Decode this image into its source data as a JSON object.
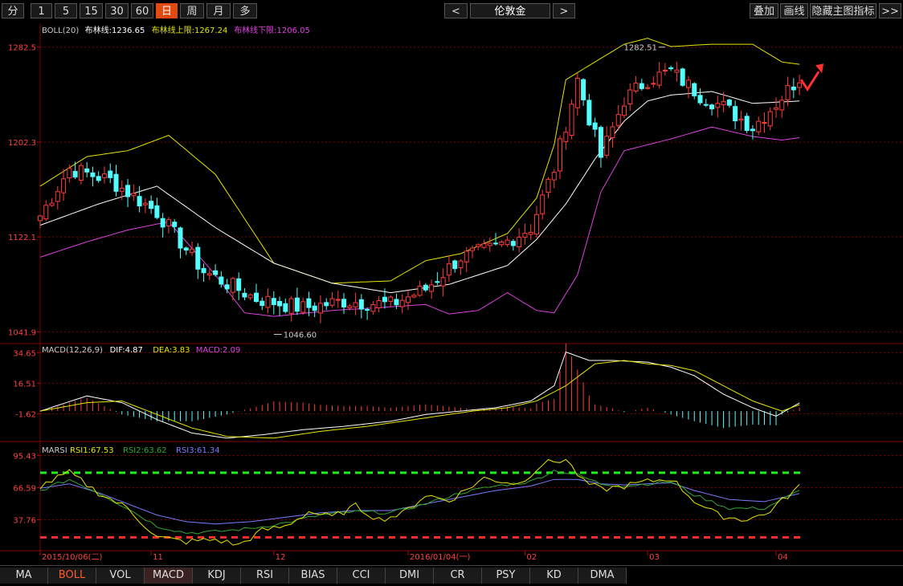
{
  "toolbar": {
    "periods": [
      "分",
      "1",
      "5",
      "15",
      "30",
      "60",
      "日",
      "周",
      "月",
      "多"
    ],
    "active_period": "日",
    "prev": "<",
    "next": ">",
    "symbol": "伦敦金",
    "actions": [
      "叠加",
      "画线",
      "隐藏主图指标",
      ">>"
    ]
  },
  "indicator_tabs": [
    "MA",
    "BOLL",
    "VOL",
    "MACD",
    "KDJ",
    "RSI",
    "BIAS",
    "CCI",
    "DMI",
    "CR",
    "PSY",
    "KD",
    "DMA"
  ],
  "active_main_tab": "BOLL",
  "active_sub_tab": "MACD",
  "colors": {
    "up": "#ff3b3b",
    "down": "#52ffff",
    "mid": "#ffffff",
    "upper": "#e6e600",
    "lower": "#e040e0",
    "grid": "#800000"
  },
  "chart_data": [
    {
      "type": "candlestick",
      "name": "BOLL",
      "legend": [
        {
          "label": "BOLL(20)",
          "color": "#cccccc"
        },
        {
          "label": "布林线:1236.65",
          "color": "#ffffff"
        },
        {
          "label": "布林线上限:1267.24",
          "color": "#e6e600"
        },
        {
          "label": "布林线下限:1206.05",
          "color": "#e040e0"
        }
      ],
      "y_ticks": [
        "1282.5",
        "1202.3",
        "1122.1",
        "1041.9"
      ],
      "y_tick_values": [
        1282.5,
        1202.3,
        1122.1,
        1041.9
      ],
      "ylim": [
        1032,
        1302
      ],
      "annotations": [
        {
          "text": "1282.51"
        },
        {
          "text": "1046.60"
        }
      ],
      "x_ticks": [
        "2015/10/06(二)",
        "11",
        "12",
        "2016/01/04(一)",
        "02",
        "03",
        "04"
      ],
      "x_tick_index": [
        0,
        19,
        40,
        63,
        83,
        104,
        126
      ],
      "n_bars": 131,
      "anchor_days": [
        0,
        5,
        12,
        20,
        28,
        37,
        45,
        52,
        60,
        66,
        72,
        78,
        84,
        88,
        92,
        96,
        100,
        104,
        108,
        113,
        117,
        122,
        126,
        130
      ],
      "anchor_close": [
        1140,
        1180,
        1170,
        1143,
        1093,
        1070,
        1062,
        1068,
        1065,
        1078,
        1105,
        1113,
        1130,
        1180,
        1255,
        1190,
        1238,
        1255,
        1262,
        1242,
        1232,
        1215,
        1235,
        1257
      ],
      "mid_days": [
        0,
        10,
        20,
        30,
        40,
        50,
        60,
        70,
        80,
        85,
        90,
        95,
        100,
        104,
        108,
        115,
        122,
        130
      ],
      "mid_vals": [
        1132,
        1150,
        1165,
        1130,
        1100,
        1083,
        1075,
        1082,
        1098,
        1120,
        1150,
        1188,
        1220,
        1237,
        1242,
        1245,
        1235,
        1237
      ],
      "upper_days": [
        0,
        8,
        15,
        22,
        30,
        40,
        50,
        60,
        66,
        72,
        80,
        85,
        88,
        90,
        95,
        100,
        104,
        108,
        115,
        122,
        127,
        130
      ],
      "upper_vals": [
        1165,
        1190,
        1195,
        1208,
        1175,
        1100,
        1083,
        1085,
        1102,
        1108,
        1125,
        1155,
        1200,
        1255,
        1270,
        1285,
        1290,
        1283,
        1285,
        1285,
        1270,
        1268
      ],
      "lower_days": [
        0,
        8,
        15,
        22,
        30,
        35,
        40,
        50,
        60,
        66,
        70,
        75,
        80,
        85,
        88,
        92,
        96,
        100,
        104,
        108,
        115,
        122,
        127,
        130
      ],
      "lower_vals": [
        1105,
        1118,
        1128,
        1135,
        1090,
        1058,
        1055,
        1060,
        1063,
        1065,
        1057,
        1060,
        1075,
        1060,
        1058,
        1090,
        1160,
        1195,
        1200,
        1205,
        1215,
        1207,
        1204,
        1206
      ],
      "arrow": "red-up-arrow"
    },
    {
      "type": "macd",
      "name": "MACD",
      "legend": [
        {
          "label": "MACD(12,26,9)",
          "color": "#cccccc"
        },
        {
          "label": "DIF:4.87",
          "color": "#ffffff"
        },
        {
          "label": "DEA:3.83",
          "color": "#e6e600"
        },
        {
          "label": "MACD:2.09",
          "color": "#e040e0"
        }
      ],
      "y_ticks": [
        "34.65",
        "16.51",
        "-1.62"
      ],
      "y_tick_values": [
        34.65,
        16.51,
        -1.62
      ],
      "ylim": [
        -18,
        40
      ],
      "dif_days": [
        0,
        8,
        14,
        20,
        26,
        32,
        38,
        45,
        52,
        60,
        66,
        72,
        78,
        84,
        88,
        90,
        94,
        98,
        104,
        108,
        112,
        117,
        122,
        126,
        130
      ],
      "dif_vals": [
        0,
        9,
        5,
        -5,
        -13,
        -16,
        -14,
        -11,
        -9,
        -6,
        -2,
        0,
        2,
        6,
        15,
        35,
        30,
        30,
        29,
        26,
        21,
        10,
        2,
        -3,
        4.87
      ],
      "dea_days": [
        0,
        8,
        14,
        20,
        26,
        32,
        40,
        48,
        56,
        62,
        68,
        74,
        80,
        85,
        90,
        95,
        100,
        104,
        108,
        112,
        117,
        122,
        127,
        130
      ],
      "dea_vals": [
        0,
        5,
        6,
        -2,
        -10,
        -15,
        -16,
        -12,
        -9,
        -6,
        -3,
        0,
        2,
        6,
        15,
        28,
        30,
        28,
        27,
        24,
        15,
        6,
        0,
        3.83
      ]
    },
    {
      "type": "line",
      "name": "MARSI",
      "legend": [
        {
          "label": "MARSI",
          "color": "#cccccc"
        },
        {
          "label": "RSI1:67.53",
          "color": "#e6e600"
        },
        {
          "label": "RSI2:63.62",
          "color": "#2fa82f"
        },
        {
          "label": "RSI3:61.34",
          "color": "#7b7bff"
        }
      ],
      "y_ticks": [
        "95.43",
        "66.59",
        "37.76"
      ],
      "y_tick_values": [
        95.43,
        66.59,
        37.76
      ],
      "ylim": [
        10,
        108
      ],
      "ref_lines": [
        80,
        22
      ],
      "rsi1_days": [
        0,
        5,
        10,
        15,
        20,
        25,
        30,
        34,
        38,
        42,
        46,
        50,
        54,
        58,
        62,
        66,
        70,
        76,
        82,
        86,
        90,
        93,
        96,
        100,
        104,
        108,
        112,
        116,
        120,
        124,
        127,
        130
      ],
      "rsi1_vals": [
        68,
        80,
        62,
        48,
        22,
        18,
        20,
        15,
        28,
        32,
        45,
        40,
        50,
        38,
        43,
        60,
        55,
        75,
        70,
        88,
        92,
        72,
        65,
        68,
        72,
        75,
        55,
        42,
        38,
        42,
        55,
        67.53
      ],
      "rsi2_days": [
        0,
        5,
        10,
        15,
        20,
        25,
        30,
        36,
        42,
        48,
        54,
        60,
        66,
        72,
        78,
        84,
        88,
        92,
        96,
        100,
        104,
        108,
        112,
        118,
        124,
        130
      ],
      "rsi2_vals": [
        64,
        74,
        62,
        48,
        32,
        26,
        27,
        30,
        35,
        42,
        45,
        44,
        52,
        62,
        68,
        72,
        82,
        78,
        70,
        68,
        70,
        72,
        60,
        48,
        48,
        63.62
      ],
      "rsi3_days": [
        0,
        5,
        10,
        15,
        20,
        25,
        30,
        36,
        42,
        48,
        54,
        60,
        66,
        72,
        78,
        84,
        88,
        92,
        96,
        100,
        104,
        108,
        112,
        118,
        124,
        130
      ],
      "rsi3_vals": [
        66,
        70,
        62,
        52,
        42,
        36,
        34,
        36,
        40,
        44,
        46,
        46,
        52,
        58,
        64,
        68,
        74,
        74,
        70,
        69,
        70,
        71,
        64,
        56,
        54,
        61.34
      ]
    }
  ]
}
